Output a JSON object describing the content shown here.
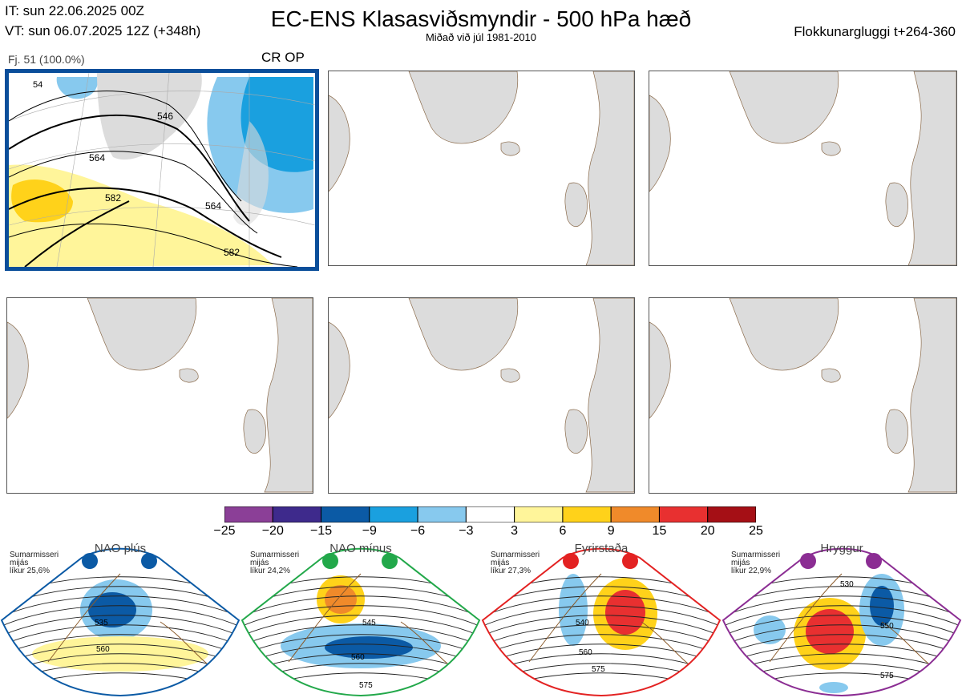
{
  "header": {
    "init_time": "IT: sun 22.06.2025 00Z",
    "valid_time": "VT: sun 06.07.2025 12Z  (+348h)",
    "title": "EC-ENS Klasasviðsmyndir - 500 hPa hæð",
    "subtitle": "Miðað við júl 1981-2010",
    "window": "Flokkunargluggi t+264-360"
  },
  "panels": [
    {
      "label": "Fj. 51 (100.0%)",
      "tag": "CR OP",
      "contours": [
        "546",
        "564",
        "582",
        "564",
        "582",
        "54"
      ],
      "filled": true
    },
    {
      "filled": false
    },
    {
      "filled": false
    },
    {
      "filled": false
    },
    {
      "filled": false
    },
    {
      "filled": false
    }
  ],
  "colorbar": {
    "ticks": [
      "−25",
      "−20",
      "−15",
      "−9",
      "−6",
      "−3",
      "3",
      "6",
      "9",
      "15",
      "20",
      "25"
    ],
    "colors": [
      "#8b3f97",
      "#3e2a8c",
      "#0b5aa5",
      "#1aa0df",
      "#87c9ee",
      "#ffffff",
      "#fff59a",
      "#ffd21a",
      "#f08a2a",
      "#e83030",
      "#a50f15"
    ]
  },
  "clusters": [
    {
      "title": "NAO plús",
      "note": [
        "Sumarmisseri",
        "mijás",
        "líkur 25,6%"
      ],
      "color": "#0b5aa5",
      "labels": [
        "535",
        "560"
      ]
    },
    {
      "title": "NAO mínus",
      "note": [
        "Sumarmisseri",
        "mijás",
        "líkur 24,2%"
      ],
      "color": "#22a84a",
      "labels": [
        "545",
        "560",
        "575"
      ]
    },
    {
      "title": "Fyrirstaða",
      "note": [
        "Sumarmisseri",
        "mijás",
        "líkur 27,3%"
      ],
      "color": "#e32222",
      "labels": [
        "540",
        "560",
        "575"
      ]
    },
    {
      "title": "Hryggur",
      "note": [
        "Sumarmisseri",
        "mijás",
        "líkur 22,9%"
      ],
      "color": "#8b2d93",
      "labels": [
        "530",
        "550",
        "575"
      ]
    }
  ],
  "chart_data": {
    "type": "heatmap",
    "title": "EC-ENS Klasasviðsmyndir - 500 hPa hæð",
    "subtitle": "Miðað við júl 1981-2010",
    "legend_ticks": [
      -25,
      -20,
      -15,
      -9,
      -6,
      -3,
      3,
      6,
      9,
      15,
      20,
      25
    ],
    "cluster_probabilities": [
      {
        "name": "NAO plús",
        "percent": 25.6
      },
      {
        "name": "NAO mínus",
        "percent": 24.2
      },
      {
        "name": "Fyrirstaða",
        "percent": 27.3
      },
      {
        "name": "Hryggur",
        "percent": 22.9
      }
    ],
    "members": 51,
    "member_share_percent": 100.0
  }
}
